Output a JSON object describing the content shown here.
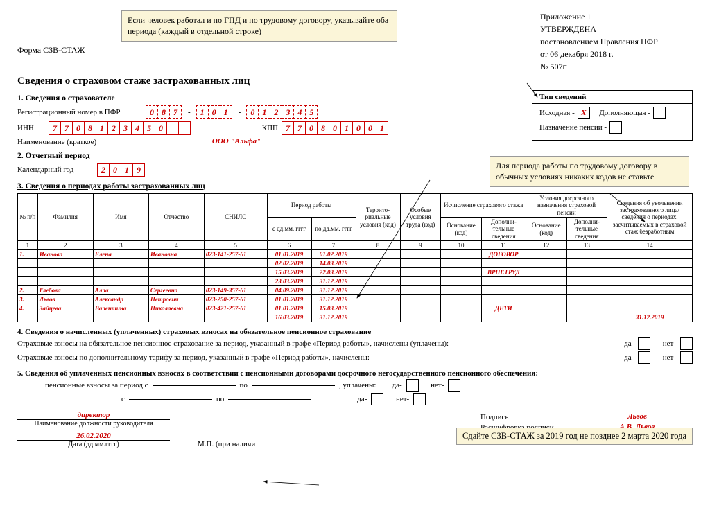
{
  "form_label": "Форма СЗВ-СТАЖ",
  "title": "Сведения о страховом стаже застрахованных лиц",
  "callout1": "Если человек работал и по ГПД и по трудовому договору, указывайте оба периода (каждый в отдельной строке)",
  "callout2": "Для периода работы по трудовому договору в обычных условиях никаких кодов не ставьте",
  "bottom_note": "Сдайте СЗВ-СТАЖ за 2019 год не позднее 2 марта 2020 года",
  "approval": {
    "l1": "Приложение 1",
    "l2": "УТВЕРЖДЕНА",
    "l3": "постановлением Правления ПФР",
    "l4": "от   06 декабря 2018 г.",
    "l5": "№   507п"
  },
  "sec1": "1. Сведения о страхователе",
  "reg_label": "Регистрационный номер в ПФР",
  "reg": {
    "p1": "087",
    "p2": "101",
    "p3": "012345"
  },
  "inn_label": "ИНН",
  "inn": "7708123450--",
  "kpp_label": "КПП",
  "kpp": "770801001",
  "name_label": "Наименование (краткое)",
  "org_name": "ООО \"Альфа\"",
  "type": {
    "title": "Тип сведений",
    "orig": "Исходная -",
    "orig_x": "X",
    "add": "Дополняющая -",
    "pens": "Назначение пенсии -"
  },
  "sec2": "2. Отчетный период",
  "year_label": "Календарный год",
  "year": "2019",
  "sec3": "3. Сведения о периодах работы застрахованных лиц",
  "cols": {
    "num": "№ п/п",
    "fam": "Фамилия",
    "name": "Имя",
    "otch": "Отчество",
    "snils": "СНИЛС",
    "period": "Период работы",
    "from": "с дд.мм. гггг",
    "to": "по дд.мм. гггг",
    "terr": "Террито-риальные условия (код)",
    "cond": "Особые условия труда (код)",
    "stazh": "Исчисление страхового стажа",
    "base": "Основание (код)",
    "dop": "Дополни-тельные сведения",
    "early": "Условия досрочного назначения страховой пенсии",
    "info": "Сведения об увольнении застрахованного лица/сведения о периодах, засчитываемых в страховой стаж безработным"
  },
  "nums": [
    "1",
    "2",
    "3",
    "4",
    "5",
    "6",
    "7",
    "8",
    "9",
    "10",
    "11",
    "12",
    "13",
    "14"
  ],
  "rows": [
    {
      "n": "1.",
      "f": "Иванова",
      "i": "Елена",
      "o": "Ивановна",
      "s": "023-141-257-61",
      "d1": "01.01.2019",
      "d2": "01.02.2019",
      "c11": "ДОГОВОР"
    },
    {
      "d1": "02.02.2019",
      "d2": "14.03.2019"
    },
    {
      "d1": "15.03.2019",
      "d2": "22.03.2019",
      "c11": "ВРНЕТРУД"
    },
    {
      "d1": "23.03.2019",
      "d2": "31.12.2019"
    },
    {
      "n": "2.",
      "f": "Глебова",
      "i": "Алла",
      "o": "Сергеевна",
      "s": "023-149-357-61",
      "d1": "04.09.2019",
      "d2": "31.12.2019"
    },
    {
      "n": "3.",
      "f": "Львов",
      "i": "Александр",
      "o": "Петрович",
      "s": "023-250-257-61",
      "d1": "01.01.2019",
      "d2": "31.12.2019"
    },
    {
      "n": "4.",
      "f": "Зайцева",
      "i": "Валентина",
      "o": "Николаевна",
      "s": "023-421-257-61",
      "d1": "01.01.2019",
      "d2": "15.03.2019",
      "c11": "ДЕТИ"
    },
    {
      "d1": "16.03.2019",
      "d2": "31.12.2019",
      "c14": "31.12.2019"
    }
  ],
  "sec4": "4. Сведения о начисленных (уплаченных) страховых взносах на обязательное пенсионное страхование",
  "s4l1": "Страховые взносы на обязательное пенсионное страхование за период, указанный в графе «Период работы», начислены (уплачены):",
  "s4l2": "Страховые взносы по дополнительному тарифу за период, указанный в графе «Период работы», начислены:",
  "da": "да-",
  "net": "нет-",
  "sec5": "5. Сведения об уплаченных пенсионных взносах в соответствии с пенсионными договорами досрочного негосударственного пенсионного обеспечения:",
  "s5l1": "пенсионные взносы за период с",
  "po": "по",
  "upl": ", уплачены:",
  "s5l2": "с",
  "s5l3": "по",
  "sig": {
    "dir": "директор",
    "dir_cap": "Наименование должности руководителя",
    "date": "26.02.2020",
    "date_cap": "Дата (дд.мм.гггг)",
    "mp": "М.П. (при наличи",
    "pod": "Подпись",
    "pod_v": "Львов",
    "ras": "Расшифровка подписи",
    "ras_v": "А.В. Львов"
  }
}
